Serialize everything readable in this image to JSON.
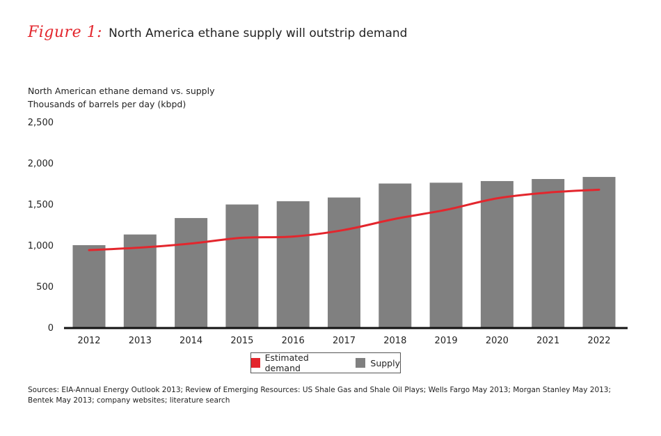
{
  "header": {
    "figure_label": "Figure 1:",
    "title": "North America ethane supply will outstrip demand"
  },
  "subtitle": {
    "line1": "North American ethane demand vs. supply",
    "line2": "Thousands of barrels per day (kbpd)"
  },
  "sources": {
    "line1": "Sources: EIA-Annual Energy Outlook 2013; Review of Emerging Resources: US Shale Gas and Shale Oil Plays; Wells Fargo May 2013; Morgan Stanley May 2013;",
    "line2": "Bentek May 2013; company websites; literature search"
  },
  "colors": {
    "supply": "#808080",
    "demand": "#e3262d",
    "axis": "#111111"
  },
  "chart_data": {
    "type": "bar",
    "categories": [
      "2012",
      "2013",
      "2014",
      "2015",
      "2016",
      "2017",
      "2018",
      "2019",
      "2020",
      "2021",
      "2022"
    ],
    "ylim": [
      0,
      2500
    ],
    "yticks": [
      0,
      500,
      1000,
      1500,
      2000,
      2500
    ],
    "ytick_labels": [
      "0",
      "500",
      "1,000",
      "1,500",
      "2,000",
      "2,500"
    ],
    "grid": false,
    "legend_position": "bottom-center",
    "series": [
      {
        "name": "Supply",
        "type": "bar",
        "values": [
          1000,
          1130,
          1330,
          1495,
          1535,
          1580,
          1750,
          1760,
          1780,
          1805,
          1830
        ]
      },
      {
        "name": "Estimated demand",
        "type": "line",
        "values": [
          940,
          970,
          1020,
          1090,
          1105,
          1185,
          1320,
          1430,
          1570,
          1640,
          1675
        ]
      }
    ]
  }
}
